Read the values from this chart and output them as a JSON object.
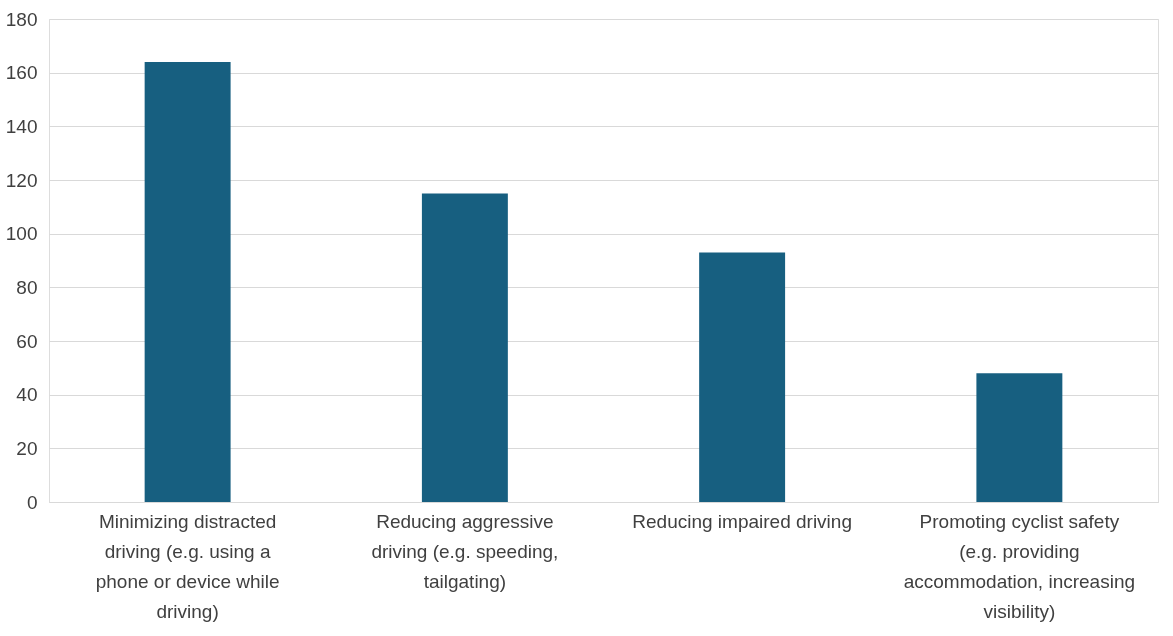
{
  "chart_data": {
    "type": "bar",
    "categories": [
      "Minimizing distracted driving (e.g. using a phone or device while driving)",
      "Reducing aggressive driving (e.g. speeding, tailgating)",
      "Reducing impaired driving",
      "Promoting cyclist safety (e.g. providing accommodation, increasing visibility)"
    ],
    "values": [
      164,
      115,
      93,
      48
    ],
    "color": "#175f80",
    "ylim": [
      0,
      180
    ],
    "yticks": [
      0,
      20,
      40,
      60,
      80,
      100,
      120,
      140,
      160,
      180
    ],
    "grid": "y"
  }
}
